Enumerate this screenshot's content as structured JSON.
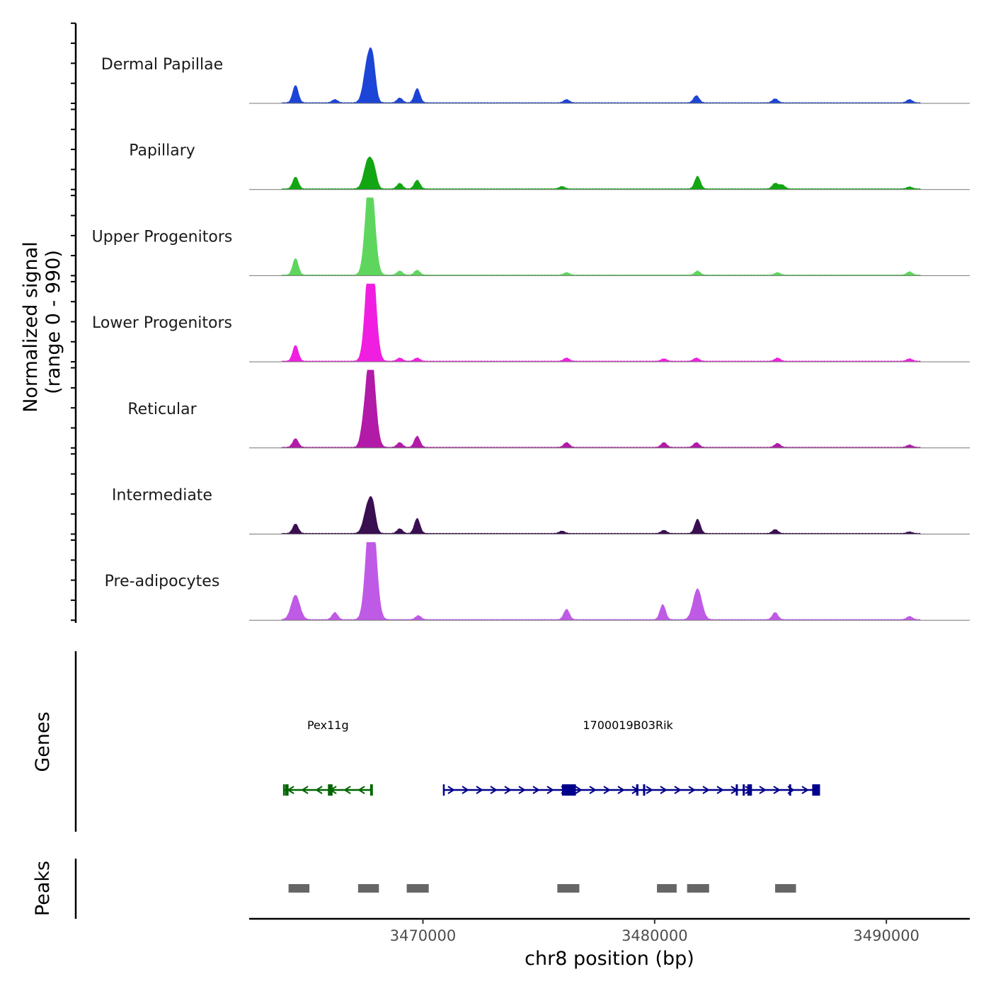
{
  "chart_data": {
    "type": "area",
    "chromosome": "chr8",
    "xlim": [
      3462500,
      3493600
    ],
    "x_ticks": [
      3470000,
      3480000,
      3490000
    ],
    "x_tick_labels": [
      "3470000",
      "3480000",
      "3490000"
    ],
    "xlabel": "chr8 position (bp)",
    "ylabel_line1": "Normalized signal",
    "ylabel_line2": "(range 0 - 990)",
    "ylim": [
      0,
      990
    ],
    "tracks": [
      {
        "name": "Dermal Papillae",
        "color": "#1c44d6",
        "peaks": [
          [
            3464500,
            220
          ],
          [
            3466200,
            40
          ],
          [
            3467650,
            580
          ],
          [
            3467850,
            280
          ],
          [
            3469000,
            60
          ],
          [
            3469750,
            180
          ],
          [
            3476200,
            40
          ],
          [
            3481800,
            90
          ],
          [
            3485200,
            50
          ],
          [
            3491000,
            40
          ]
        ]
      },
      {
        "name": "Papillary",
        "color": "#12a612",
        "peaks": [
          [
            3464500,
            150
          ],
          [
            3467650,
            380
          ],
          [
            3467900,
            150
          ],
          [
            3469000,
            70
          ],
          [
            3469750,
            110
          ],
          [
            3476000,
            30
          ],
          [
            3481850,
            160
          ],
          [
            3485200,
            70
          ],
          [
            3485500,
            50
          ],
          [
            3491000,
            25
          ]
        ]
      },
      {
        "name": "Upper Progenitors",
        "color": "#5ed65e",
        "peaks": [
          [
            3464500,
            210
          ],
          [
            3467700,
            850
          ],
          [
            3467750,
            500
          ],
          [
            3469000,
            50
          ],
          [
            3469750,
            60
          ],
          [
            3476200,
            30
          ],
          [
            3481850,
            50
          ],
          [
            3485300,
            30
          ],
          [
            3491000,
            40
          ]
        ]
      },
      {
        "name": "Lower Progenitors",
        "color": "#f01ee0",
        "peaks": [
          [
            3464500,
            200
          ],
          [
            3467700,
            960
          ],
          [
            3467800,
            700
          ],
          [
            3469000,
            40
          ],
          [
            3469750,
            40
          ],
          [
            3476200,
            40
          ],
          [
            3480400,
            30
          ],
          [
            3481800,
            40
          ],
          [
            3485300,
            40
          ],
          [
            3491000,
            30
          ]
        ]
      },
      {
        "name": "Reticular",
        "color": "#b21aa8",
        "peaks": [
          [
            3464500,
            110
          ],
          [
            3467700,
            820
          ],
          [
            3467800,
            500
          ],
          [
            3467400,
            120
          ],
          [
            3469000,
            60
          ],
          [
            3469750,
            140
          ],
          [
            3476200,
            60
          ],
          [
            3480400,
            60
          ],
          [
            3481800,
            60
          ],
          [
            3485300,
            50
          ],
          [
            3491000,
            30
          ]
        ]
      },
      {
        "name": "Intermediate",
        "color": "#3a0f52",
        "peaks": [
          [
            3464500,
            120
          ],
          [
            3467650,
            380
          ],
          [
            3467850,
            200
          ],
          [
            3469000,
            60
          ],
          [
            3469750,
            190
          ],
          [
            3476000,
            30
          ],
          [
            3480400,
            40
          ],
          [
            3481850,
            180
          ],
          [
            3485200,
            50
          ],
          [
            3491000,
            20
          ]
        ]
      },
      {
        "name": "Pre-adipocytes",
        "color": "#bf5ae6",
        "peaks": [
          [
            3464500,
            310
          ],
          [
            3466200,
            90
          ],
          [
            3467700,
            960
          ],
          [
            3467850,
            750
          ],
          [
            3469800,
            50
          ],
          [
            3476200,
            130
          ],
          [
            3480350,
            190
          ],
          [
            3481850,
            390
          ],
          [
            3485200,
            90
          ],
          [
            3491000,
            40
          ]
        ]
      }
    ],
    "genes": [
      {
        "name": "Pex11g",
        "start": 3464000,
        "end": 3467800,
        "strand": "-",
        "color": "#006400",
        "exons": [
          [
            3464050,
            3464200
          ],
          [
            3465900,
            3466100
          ],
          [
            3467720,
            3467800
          ]
        ]
      },
      {
        "name": "1700019B03Rik",
        "start": 3470900,
        "end": 3487100,
        "strand": "+",
        "color": "#00008b",
        "exons": [
          [
            3476000,
            3476600
          ],
          [
            3479200,
            3479300
          ],
          [
            3479500,
            3479580
          ],
          [
            3483500,
            3483580
          ],
          [
            3483800,
            3483880
          ],
          [
            3484000,
            3484200
          ],
          [
            3485800,
            3485880
          ],
          [
            3486800,
            3487100
          ]
        ]
      }
    ],
    "peak_regions": [
      [
        3464200,
        3465100
      ],
      [
        3467200,
        3468100
      ],
      [
        3469300,
        3470250
      ],
      [
        3475800,
        3476750
      ],
      [
        3480100,
        3480950
      ],
      [
        3481400,
        3482350
      ],
      [
        3485200,
        3486100
      ]
    ],
    "gene_track_label": "Genes",
    "peak_track_label": "Peaks"
  }
}
